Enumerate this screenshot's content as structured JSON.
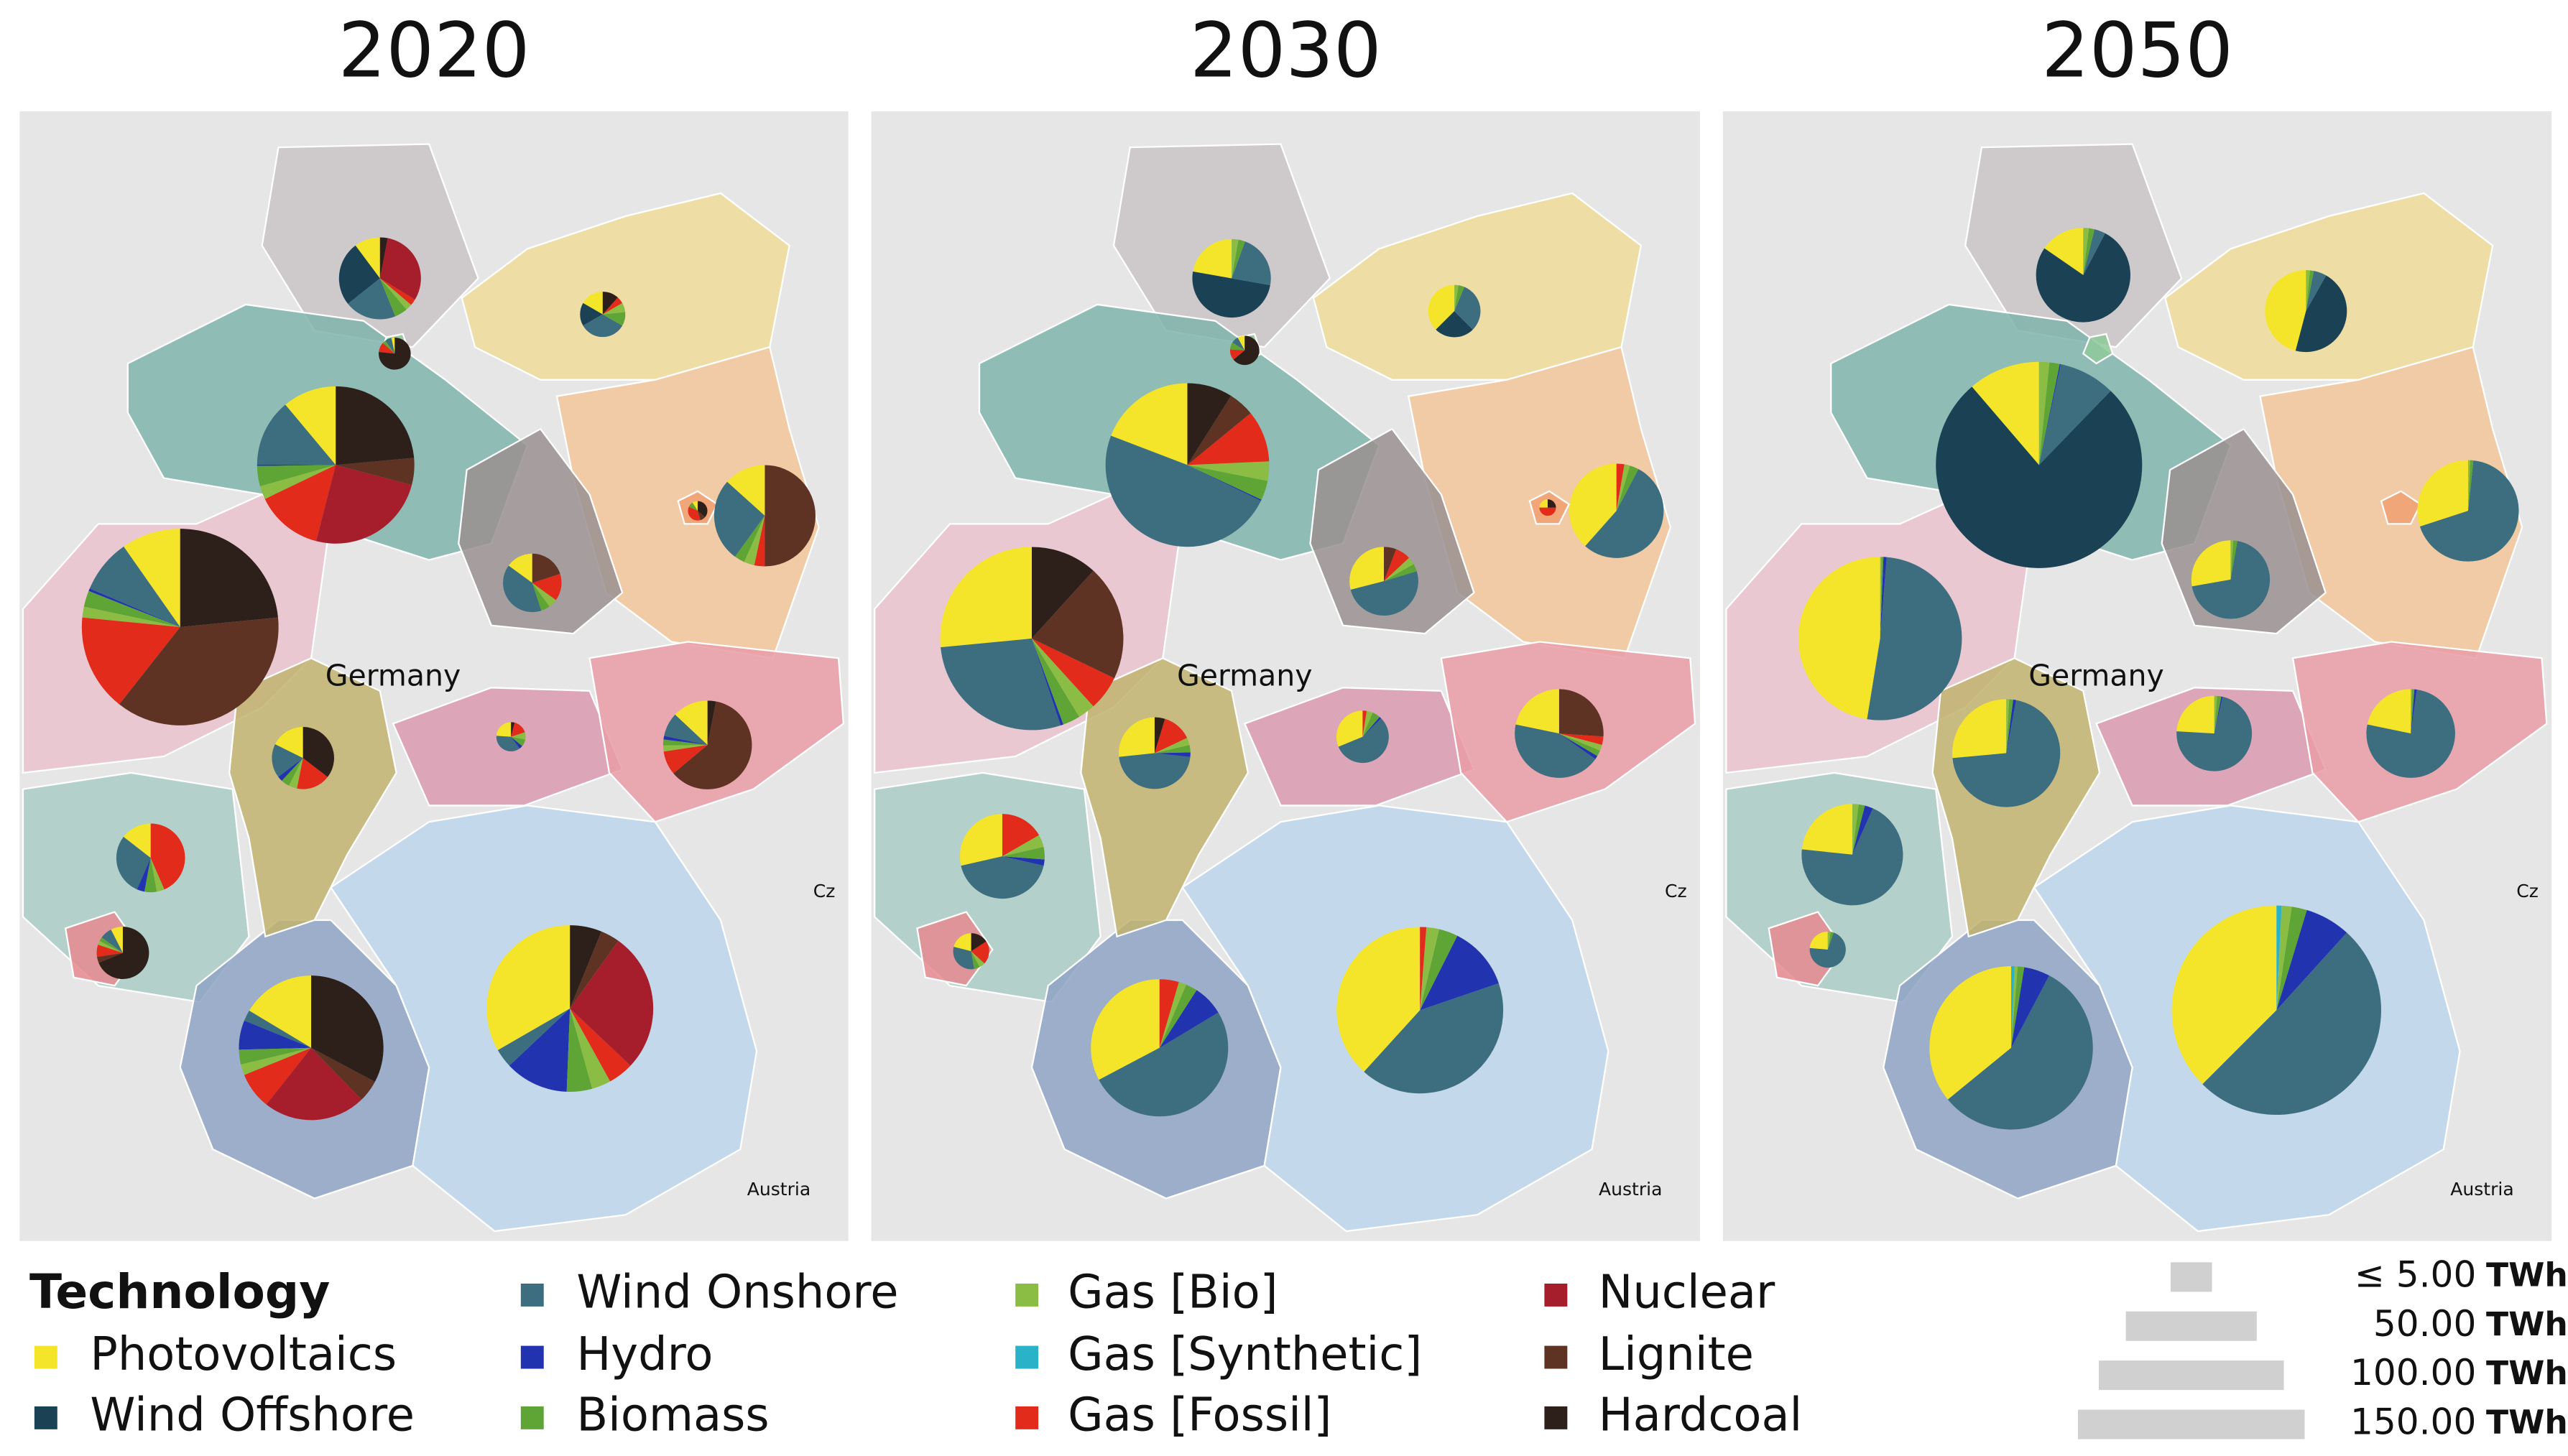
{
  "chart_data": [
    {
      "type": "pie-map",
      "title": "2020",
      "annotations": [
        "Germany",
        "Cz",
        "Austria"
      ],
      "pies": [
        {
          "values": [
            2,
            5,
            4,
            0,
            1,
            0.5,
            0,
            0.5,
            6,
            0,
            0.6
          ]
        },
        {
          "values": [
            1,
            1,
            2,
            0,
            0.6,
            0.4,
            0,
            0.3,
            0,
            0,
            0.7
          ]
        },
        {
          "values": [
            0.1,
            0,
            0.2,
            0,
            0.1,
            0,
            0,
            0.3,
            0,
            0,
            2.3
          ]
        },
        {
          "values": [
            8,
            0,
            10,
            0.2,
            3,
            2,
            0,
            10,
            18,
            4,
            17
          ]
        },
        {
          "values": [
            4,
            0,
            8,
            0,
            1,
            1,
            0,
            1,
            0,
            15,
            0
          ]
        },
        {
          "values": [
            0.1,
            0,
            0,
            0,
            0.1,
            0,
            0,
            0.4,
            0,
            0.1,
            0.4
          ]
        },
        {
          "values": [
            1.5,
            0,
            4,
            0,
            0.5,
            0.5,
            0,
            1.5,
            0,
            2,
            0
          ]
        },
        {
          "values": [
            11,
            0,
            10,
            0.5,
            3,
            2,
            0,
            18,
            0,
            42,
            26.5
          ]
        },
        {
          "values": [
            2,
            0,
            2,
            0.3,
            0.5,
            0.5,
            0,
            2,
            0,
            0,
            4
          ]
        },
        {
          "values": [
            0.6,
            0,
            0.9,
            0.1,
            0.2,
            0.2,
            0,
            0.4,
            0,
            0,
            0.1
          ]
        },
        {
          "values": [
            3,
            0,
            2,
            0.3,
            0.5,
            0.5,
            0,
            2,
            0,
            14,
            0.7
          ]
        },
        {
          "values": [
            2,
            0,
            4,
            0.5,
            0.8,
            0.5,
            0,
            6,
            0,
            0,
            0
          ]
        },
        {
          "values": [
            0.6,
            0,
            0.6,
            0,
            0.2,
            0.2,
            0,
            0.6,
            0,
            0.3,
            5.5
          ]
        },
        {
          "values": [
            10,
            0,
            1.5,
            4,
            2,
            1.5,
            0,
            5,
            14,
            3,
            20
          ]
        },
        {
          "values": [
            27,
            0,
            3,
            10,
            4,
            3,
            0,
            4,
            22,
            3,
            5
          ]
        }
      ]
    },
    {
      "type": "pie-map",
      "title": "2030",
      "annotations": [
        "Germany",
        "Cz",
        "Austria"
      ],
      "pies": [
        {
          "values": [
            4,
            9,
            4,
            0,
            0.5,
            0.5,
            0,
            0,
            0,
            0,
            0
          ]
        },
        {
          "values": [
            3,
            2,
            2.5,
            0,
            0.3,
            0.2,
            0,
            0,
            0,
            0,
            0
          ]
        },
        {
          "values": [
            0.2,
            0,
            0.2,
            0,
            0.2,
            0,
            0,
            0.3,
            0,
            0,
            1.6
          ]
        },
        {
          "values": [
            15,
            0,
            38,
            0.2,
            3,
            3,
            0,
            8,
            0,
            4,
            7
          ]
        },
        {
          "values": [
            10,
            0,
            14,
            0,
            0.8,
            0.5,
            0,
            0.7,
            0,
            0,
            0
          ]
        },
        {
          "values": [
            0.2,
            0,
            0,
            0,
            0,
            0,
            0,
            0.4,
            0,
            0,
            0.2
          ]
        },
        {
          "values": [
            4,
            0,
            7,
            0,
            0.5,
            0.5,
            0,
            1,
            0,
            0.8,
            0
          ]
        },
        {
          "values": [
            26,
            0,
            28,
            0.5,
            3,
            3,
            0,
            6,
            0,
            20,
            11.5
          ]
        },
        {
          "values": [
            4,
            0,
            7,
            0.3,
            0.5,
            0.5,
            0,
            2,
            0,
            0,
            0.7
          ]
        },
        {
          "values": [
            2.5,
            0,
            4.5,
            0.1,
            0.4,
            0.3,
            0,
            0.2,
            0,
            0,
            0
          ]
        },
        {
          "values": [
            5,
            0,
            10,
            0.3,
            0.5,
            0.5,
            0,
            0.7,
            0,
            6,
            0
          ]
        },
        {
          "values": [
            6,
            0,
            9,
            0.5,
            1,
            1,
            0,
            3.5,
            0,
            0,
            0
          ]
        },
        {
          "values": [
            0.8,
            0,
            1.2,
            0,
            0.2,
            0.2,
            0,
            0.8,
            0,
            0,
            0.6
          ]
        },
        {
          "values": [
            18,
            0,
            28,
            4,
            1.5,
            1,
            0,
            2.5,
            0,
            0,
            0
          ]
        },
        {
          "values": [
            31,
            0,
            34,
            10,
            3,
            2,
            0,
            1,
            0,
            0,
            0
          ]
        }
      ]
    },
    {
      "type": "pie-map",
      "title": "2050",
      "annotations": [
        "Germany",
        "Cz",
        "Austria"
      ],
      "pies": [
        {
          "values": [
            4,
            20,
            1,
            0,
            0.5,
            0.5,
            0,
            0,
            0,
            0,
            0
          ]
        },
        {
          "values": [
            9,
            9,
            1,
            0,
            0.3,
            0.3,
            0,
            0,
            0,
            0,
            0
          ]
        },
        null,
        {
          "values": [
            14,
            95,
            11,
            0.2,
            2,
            2,
            0,
            0,
            0,
            0,
            0
          ]
        },
        {
          "values": [
            9,
            0,
            20.5,
            0,
            0.3,
            0.2,
            0,
            0,
            0,
            0,
            0
          ]
        },
        null,
        {
          "values": [
            5,
            0,
            12.5,
            0,
            0.3,
            0.2,
            0,
            0,
            0,
            0,
            0
          ]
        },
        {
          "values": [
            37,
            0,
            40,
            0.5,
            0.3,
            0.2,
            0,
            0,
            0,
            0,
            0
          ]
        },
        {
          "values": [
            9,
            0,
            24,
            0.3,
            0.4,
            0.3,
            0,
            0,
            0,
            0,
            0
          ]
        },
        {
          "values": [
            4,
            0,
            12,
            0.1,
            0.3,
            0.2,
            0,
            0,
            0,
            0,
            0
          ]
        },
        {
          "values": [
            5,
            0,
            17.5,
            0.2,
            0.2,
            0.1,
            0,
            0,
            0,
            0,
            0
          ]
        },
        {
          "values": [
            7,
            0,
            21,
            0.8,
            0.6,
            0.6,
            0,
            0,
            0,
            0,
            0
          ]
        },
        {
          "values": [
            0.9,
            0,
            2.7,
            0,
            0.1,
            0.1,
            0,
            0,
            0,
            0,
            0
          ]
        },
        {
          "values": [
            28,
            0,
            44,
            4,
            1,
            0.5,
            0.5,
            0,
            0,
            0,
            0
          ]
        },
        {
          "values": [
            48,
            0,
            65,
            9,
            3,
            2,
            1,
            0,
            0,
            0,
            0
          ]
        }
      ]
    }
  ],
  "legend": {
    "title": "Technology",
    "series": [
      {
        "name": "Photovoltaics",
        "color": "#f5e52a"
      },
      {
        "name": "Wind Offshore",
        "color": "#1a4254"
      },
      {
        "name": "Wind Onshore",
        "color": "#3c6e7f"
      },
      {
        "name": "Hydro",
        "color": "#2233b0"
      },
      {
        "name": "Biomass",
        "color": "#5fa535"
      },
      {
        "name": "Gas [Bio]",
        "color": "#8bbd44"
      },
      {
        "name": "Gas [Synthetic]",
        "color": "#2ab3c8"
      },
      {
        "name": "Gas [Fossil]",
        "color": "#e22b1a"
      },
      {
        "name": "Nuclear",
        "color": "#a61e2c"
      },
      {
        "name": "Lignite",
        "color": "#5e3324"
      },
      {
        "name": "Hardcoal",
        "color": "#2d1f1a"
      }
    ],
    "size_scale": [
      {
        "value": 5,
        "label": "≤ 5.00"
      },
      {
        "value": 50,
        "label": "50.00"
      },
      {
        "value": 100,
        "label": "100.00"
      },
      {
        "value": 150,
        "label": "150.00"
      }
    ],
    "size_unit": "TWh"
  }
}
